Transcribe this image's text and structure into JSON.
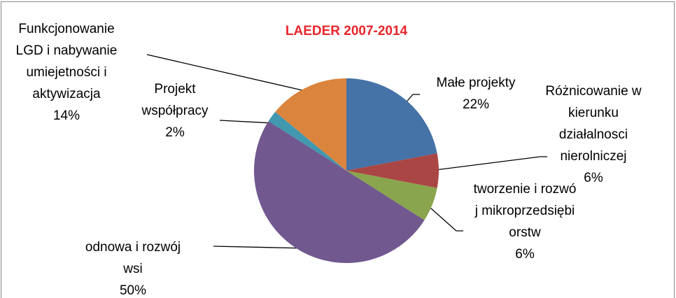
{
  "chart_data": {
    "type": "pie",
    "title": "LAEDER 2007-2014",
    "categories": [
      "Małe projekty",
      "Różnicowanie w kierunku działalnosci nierolniczej",
      "tworzenie i rozwój mikroprzedsiębiorstw",
      "odnowa i rozwój wsi",
      "Projekt współpracy",
      "Funkcjonowanie LGD i nabywanie umiejetności i aktywizacja"
    ],
    "values": [
      22,
      6,
      6,
      50,
      2,
      14
    ],
    "value_labels": [
      "22%",
      "6%",
      "6%",
      "50%",
      "2%",
      "14%"
    ],
    "colors": [
      "#4572a7",
      "#aa4643",
      "#89a54e",
      "#71588f",
      "#4198af",
      "#db843d"
    ]
  }
}
